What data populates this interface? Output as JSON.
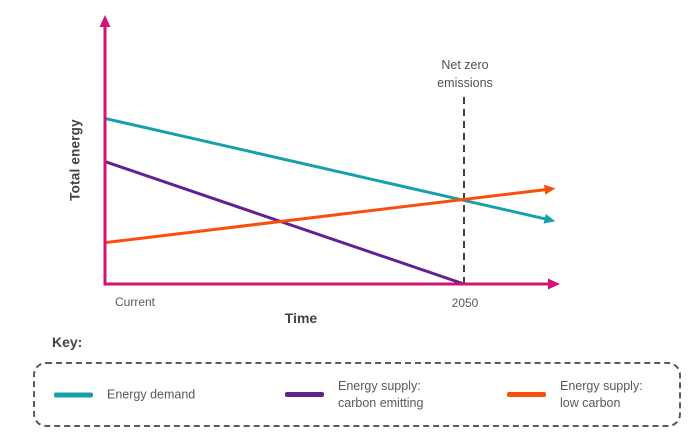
{
  "chart_data": {
    "type": "line",
    "title": "",
    "xlabel": "Time",
    "ylabel": "Total energy",
    "x_ticks": [
      {
        "label": "Current",
        "t": 0
      },
      {
        "label": "2050",
        "t": 1
      }
    ],
    "xlim": [
      0,
      1.27
    ],
    "ylim": [
      0,
      100
    ],
    "grid": false,
    "axis_color": "#d41276",
    "annotation": {
      "label": "Net zero\nemissions",
      "t": 1,
      "line_color": "#404040"
    },
    "series": [
      {
        "name": "Energy demand",
        "color": "#17a0ac",
        "arrow": true,
        "points": [
          {
            "t": 0,
            "v": 92
          },
          {
            "t": 1.23,
            "v": 36
          }
        ]
      },
      {
        "name": "Energy supply:\ncarbon emitting",
        "color": "#622190",
        "arrow": false,
        "points": [
          {
            "t": 0,
            "v": 68
          },
          {
            "t": 1,
            "v": 0
          }
        ]
      },
      {
        "name": "Energy supply:\nlow carbon",
        "color": "#fa4e0d",
        "arrow": true,
        "points": [
          {
            "t": 0,
            "v": 23
          },
          {
            "t": 1.23,
            "v": 52.5
          }
        ]
      }
    ],
    "legend_position": "bottom"
  },
  "legend": {
    "title": "Key:"
  }
}
